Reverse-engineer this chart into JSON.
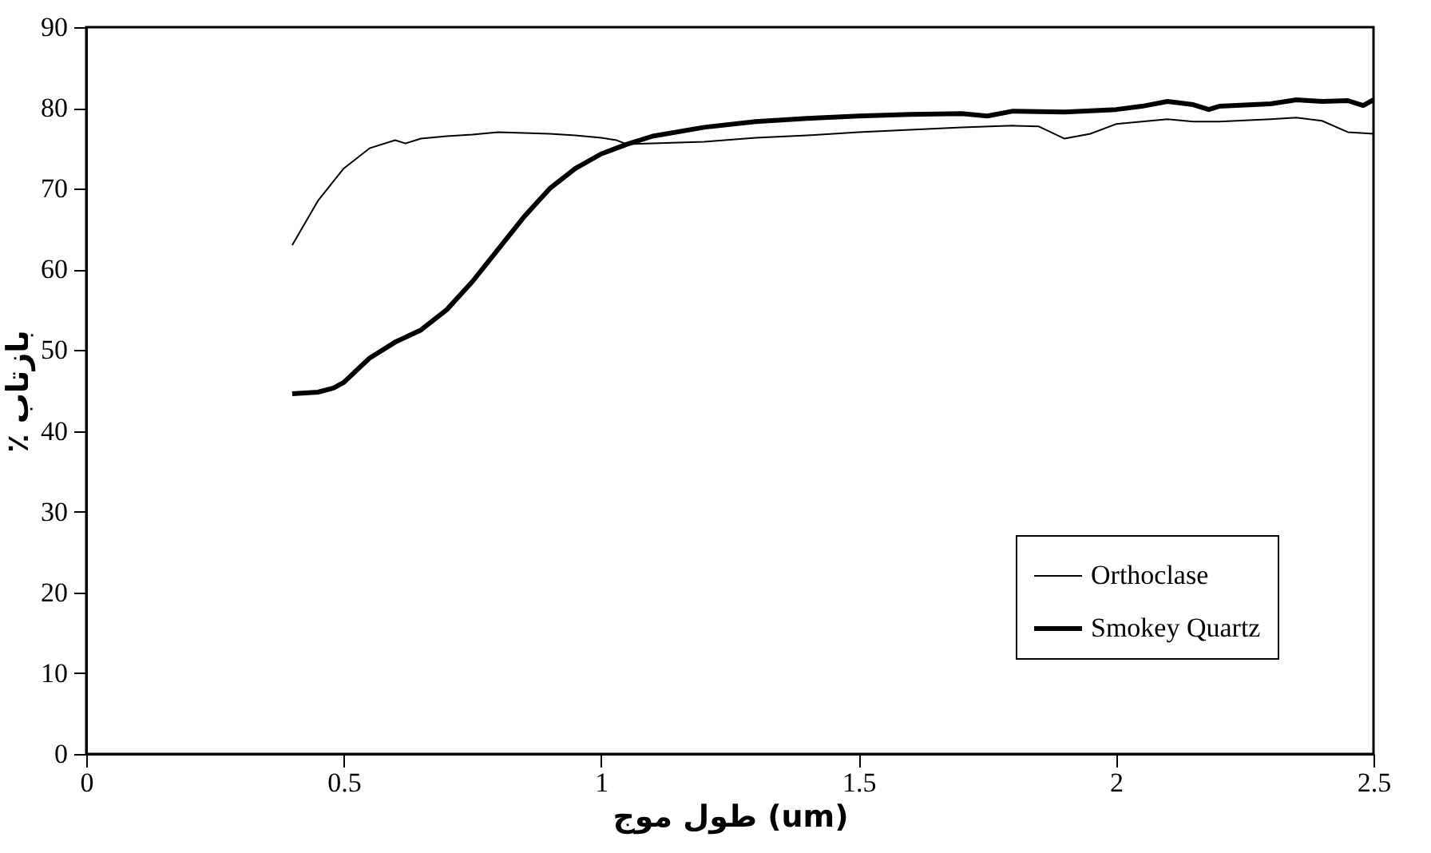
{
  "chart_data": {
    "type": "line",
    "xlabel": "طول موج (um)",
    "ylabel": "٪ بازتاب",
    "xlim": [
      0,
      2.5
    ],
    "xticks": [
      0,
      0.5,
      1,
      1.5,
      2,
      2.5
    ],
    "ylim": [
      0,
      90
    ],
    "yticks": [
      0,
      10,
      20,
      30,
      40,
      50,
      60,
      70,
      80,
      90
    ],
    "grid": false,
    "legend": "bottom right",
    "marker": "none",
    "line_style": "solid",
    "series": [
      {
        "name": "Orthoclase",
        "color": "#000000",
        "x": [
          0.4,
          0.45,
          0.5,
          0.55,
          0.6,
          0.62,
          0.65,
          0.7,
          0.75,
          0.8,
          0.85,
          0.9,
          0.95,
          1.0,
          1.03,
          1.05,
          1.1,
          1.2,
          1.3,
          1.4,
          1.5,
          1.6,
          1.7,
          1.8,
          1.85,
          1.9,
          1.95,
          2.0,
          2.1,
          2.15,
          2.2,
          2.3,
          2.35,
          2.4,
          2.45,
          2.5
        ],
        "values": [
          63,
          68.5,
          72.5,
          75,
          76,
          75.6,
          76.2,
          76.5,
          76.7,
          77,
          76.9,
          76.8,
          76.6,
          76.3,
          76,
          75.5,
          75.6,
          75.8,
          76.3,
          76.6,
          77,
          77.3,
          77.6,
          77.8,
          77.7,
          76.2,
          76.8,
          78,
          78.6,
          78.3,
          78.3,
          78.6,
          78.8,
          78.4,
          77,
          76.8
        ]
      },
      {
        "name": "Smokey Quartz",
        "color": "#000000",
        "x": [
          0.4,
          0.45,
          0.48,
          0.5,
          0.55,
          0.6,
          0.65,
          0.7,
          0.75,
          0.8,
          0.85,
          0.9,
          0.95,
          1.0,
          1.05,
          1.1,
          1.2,
          1.3,
          1.4,
          1.5,
          1.6,
          1.7,
          1.75,
          1.8,
          1.9,
          2.0,
          2.05,
          2.1,
          2.15,
          2.18,
          2.2,
          2.3,
          2.35,
          2.4,
          2.45,
          2.48,
          2.5
        ],
        "values": [
          44.6,
          44.8,
          45.3,
          46,
          49,
          51,
          52.5,
          55,
          58.5,
          62.5,
          66.5,
          70,
          72.5,
          74.3,
          75.5,
          76.5,
          77.6,
          78.3,
          78.7,
          79,
          79.2,
          79.3,
          79,
          79.6,
          79.5,
          79.8,
          80.2,
          80.8,
          80.4,
          79.8,
          80.2,
          80.5,
          81,
          80.8,
          80.9,
          80.3,
          81
        ]
      }
    ]
  }
}
